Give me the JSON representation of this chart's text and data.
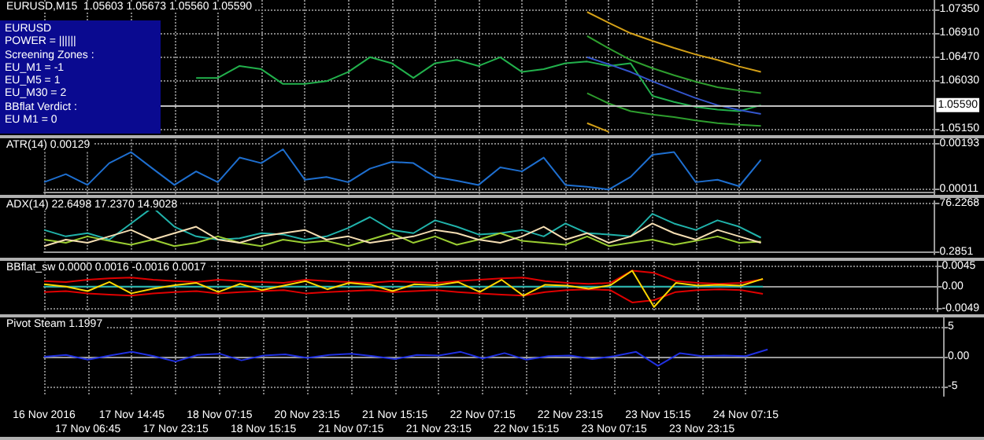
{
  "chart_data": [
    {
      "type": "line",
      "title": "EURUSD,M15  1.05603 1.05673 1.05560 1.05590",
      "annotations": [
        "EURUSD",
        "POWER = ||||||",
        "Screening Zones :",
        "EU_M1  = -1",
        "EU_M5  = 1",
        "EU_M30 = 2",
        "BBflat Verdict :",
        "EU M1  = 0"
      ],
      "categories": [
        null,
        null,
        null,
        null,
        null,
        null,
        null,
        null,
        null,
        null,
        null,
        null,
        null,
        null,
        null,
        null,
        null,
        null,
        null,
        null,
        null,
        null,
        null,
        null,
        null,
        null,
        null,
        null,
        null,
        null,
        null,
        null,
        null,
        null,
        null,
        null,
        null,
        null,
        null,
        null,
        null,
        null
      ],
      "series": [
        {
          "color": "#22b14c",
          "values": [
            null,
            null,
            null,
            null,
            null,
            null,
            null,
            1.0609,
            1.0609,
            1.0631,
            1.0625,
            1.0598,
            1.0598,
            1.0603,
            1.062,
            1.0647,
            1.0636,
            1.0609,
            1.0636,
            1.0642,
            1.0631,
            1.0647,
            1.062,
            1.0625,
            1.0636,
            1.0639,
            1.0631,
            1.0636,
            1.0576,
            1.0565,
            1.0556,
            1.0551,
            1.0548,
            1.0559,
            null,
            null,
            null,
            null,
            null,
            null,
            null,
            null
          ]
        },
        {
          "color": "#d4a017",
          "values": [
            null,
            null,
            null,
            null,
            null,
            null,
            null,
            null,
            null,
            null,
            null,
            null,
            null,
            null,
            null,
            null,
            null,
            null,
            null,
            null,
            null,
            null,
            null,
            null,
            null,
            1.073,
            1.071,
            1.0691,
            1.0677,
            1.0664,
            1.0652,
            1.0642,
            1.063,
            1.062,
            null,
            null,
            null,
            null,
            null,
            null,
            null,
            null
          ]
        },
        {
          "color": "#d4a017",
          "values": [
            null,
            null,
            null,
            null,
            null,
            null,
            null,
            null,
            null,
            null,
            null,
            null,
            null,
            null,
            null,
            null,
            null,
            null,
            null,
            null,
            null,
            null,
            null,
            null,
            null,
            1.0526,
            1.051,
            null,
            null,
            null,
            null,
            null,
            null,
            null,
            null,
            null,
            null,
            null,
            null,
            null,
            null,
            null
          ]
        },
        {
          "color": "#2e9e2e",
          "values": [
            null,
            null,
            null,
            null,
            null,
            null,
            null,
            null,
            null,
            null,
            null,
            null,
            null,
            null,
            null,
            null,
            null,
            null,
            null,
            null,
            null,
            null,
            null,
            null,
            null,
            1.0686,
            1.0663,
            1.0642,
            1.0627,
            1.0614,
            1.0602,
            1.0592,
            1.0586,
            1.0581,
            null,
            null,
            null,
            null,
            null,
            null,
            null,
            null
          ]
        },
        {
          "color": "#2e9e2e",
          "values": [
            null,
            null,
            null,
            null,
            null,
            null,
            null,
            null,
            null,
            null,
            null,
            null,
            null,
            null,
            null,
            null,
            null,
            null,
            null,
            null,
            null,
            null,
            null,
            null,
            null,
            1.0581,
            1.0562,
            1.0548,
            1.0542,
            1.0537,
            1.0531,
            1.0526,
            1.0523,
            1.0521,
            null,
            null,
            null,
            null,
            null,
            null,
            null,
            null
          ]
        },
        {
          "color": "#3355cc",
          "values": [
            null,
            null,
            null,
            null,
            null,
            null,
            null,
            null,
            null,
            null,
            null,
            null,
            null,
            null,
            null,
            null,
            null,
            null,
            null,
            null,
            null,
            null,
            null,
            null,
            null,
            1.0647,
            1.0634,
            1.062,
            1.0603,
            1.0587,
            1.0572,
            1.0559,
            1.055,
            1.0543,
            null,
            null,
            null,
            null,
            null,
            null,
            null,
            null
          ]
        }
      ],
      "ylim": [
        1.0504,
        1.0752
      ],
      "yticks": [
        {
          "value": 1.0735,
          "label": "1.07350"
        },
        {
          "value": 1.0691,
          "label": "1.06910"
        },
        {
          "value": 1.0647,
          "label": "1.06470"
        },
        {
          "value": 1.0603,
          "label": "1.06030"
        },
        {
          "value": 1.0515,
          "label": "1.05150"
        }
      ],
      "ref_lines": [
        {
          "axis": "y",
          "value": 1.0559,
          "label": "1.05590",
          "color": "#c0c0c0"
        }
      ],
      "grid": true,
      "tick_labels": "y"
    },
    {
      "type": "line",
      "title": "ATR(14) 0.00129",
      "categories": [
        null,
        null,
        null,
        null,
        null,
        null,
        null,
        null,
        null,
        null,
        null,
        null,
        null,
        null,
        null,
        null,
        null,
        null,
        null,
        null,
        null,
        null,
        null,
        null,
        null,
        null,
        null,
        null,
        null,
        null,
        null,
        null,
        null,
        null,
        null,
        null,
        null,
        null,
        null,
        null,
        null,
        null
      ],
      "series": [
        {
          "color": "#1e6fd0",
          "values": [
            0.0004,
            0.00072,
            0.00029,
            0.00116,
            0.0016,
            0.00094,
            0.00029,
            0.00083,
            0.0004,
            0.00138,
            0.00116,
            0.00171,
            0.0005,
            0.00061,
            0.0004,
            0.00094,
            0.00121,
            0.00116,
            0.00061,
            0.00046,
            0.00029,
            0.00099,
            0.00083,
            0.00138,
            0.00029,
            0.00022,
            0.00011,
            0.00061,
            0.00149,
            0.0016,
            0.0004,
            0.0005,
            0.00024,
            0.00129,
            null,
            null,
            null,
            null,
            null,
            null,
            null,
            null
          ]
        }
      ],
      "ylim": [
        -0.0001,
        0.0021
      ],
      "yticks": [
        0.00193,
        0.00011
      ],
      "grid": true,
      "tick_labels": "y"
    },
    {
      "type": "line",
      "title": "ADX(14) 22.6498 17.2370 14.9028",
      "categories": [
        null,
        null,
        null,
        null,
        null,
        null,
        null,
        null,
        null,
        null,
        null,
        null,
        null,
        null,
        null,
        null,
        null,
        null,
        null,
        null,
        null,
        null,
        null,
        null,
        null,
        null,
        null,
        null,
        null,
        null,
        null,
        null,
        null,
        null,
        null,
        null,
        null,
        null,
        null,
        null,
        null,
        null
      ],
      "series": [
        {
          "color": "#20b2aa",
          "values": [
            35,
            25,
            30,
            20,
            45,
            70,
            40,
            25,
            20,
            22,
            30,
            28,
            20,
            25,
            38,
            55,
            35,
            30,
            50,
            40,
            28,
            30,
            35,
            25,
            45,
            30,
            28,
            25,
            60,
            45,
            35,
            50,
            40,
            23,
            null,
            null,
            null,
            null,
            null,
            null,
            null,
            null
          ]
        },
        {
          "color": "#9acd32",
          "values": [
            20,
            15,
            25,
            18,
            12,
            20,
            10,
            15,
            25,
            15,
            10,
            20,
            15,
            18,
            10,
            20,
            30,
            15,
            25,
            12,
            20,
            30,
            18,
            15,
            12,
            25,
            10,
            15,
            20,
            12,
            18,
            25,
            15,
            17,
            null,
            null,
            null,
            null,
            null,
            null,
            null,
            null
          ]
        },
        {
          "color": "#f5deb3",
          "values": [
            10,
            20,
            15,
            25,
            35,
            20,
            30,
            40,
            20,
            15,
            25,
            30,
            35,
            20,
            25,
            15,
            20,
            25,
            35,
            30,
            20,
            15,
            25,
            40,
            20,
            30,
            15,
            25,
            45,
            30,
            20,
            35,
            25,
            15,
            null,
            null,
            null,
            null,
            null,
            null,
            null,
            null
          ]
        }
      ],
      "ylim": [
        -3,
        80
      ],
      "yticks": [
        76.2268,
        0.2851
      ],
      "grid": true,
      "tick_labels": "y"
    },
    {
      "type": "line",
      "title": "BBflat_sw 0.0000 0.0016 -0.0016 0.0017",
      "categories": [
        null,
        null,
        null,
        null,
        null,
        null,
        null,
        null,
        null,
        null,
        null,
        null,
        null,
        null,
        null,
        null,
        null,
        null,
        null,
        null,
        null,
        null,
        null,
        null,
        null,
        null,
        null,
        null,
        null,
        null,
        null,
        null,
        null,
        null,
        null,
        null,
        null,
        null,
        null,
        null,
        null,
        null
      ],
      "series": [
        {
          "color": "#20b2aa",
          "values": [
            0,
            0,
            0,
            0,
            0,
            0,
            0,
            0,
            0,
            0,
            0,
            0,
            0,
            0,
            0,
            0,
            0,
            0,
            0,
            0,
            0,
            0,
            0,
            0,
            0,
            0,
            0,
            0,
            0,
            0,
            0,
            0,
            0,
            0,
            null,
            null,
            null,
            null,
            null,
            null,
            null,
            null
          ]
        },
        {
          "color": "#e00000",
          "values": [
            0.0012,
            0.001,
            0.0015,
            0.0018,
            0.002,
            0.0015,
            0.0012,
            0.001,
            0.0015,
            0.0012,
            0.001,
            0.0008,
            0.0015,
            0.0012,
            0.001,
            0.0008,
            0.0012,
            0.001,
            0.0008,
            0.0012,
            0.0015,
            0.0018,
            0.002,
            0.0012,
            0.0008,
            0.0006,
            0.0008,
            0.0035,
            0.003,
            0.0012,
            0.0008,
            0.0006,
            0.0008,
            0.0016,
            null,
            null,
            null,
            null,
            null,
            null,
            null,
            null
          ]
        },
        {
          "color": "#e00000",
          "values": [
            -0.0012,
            -0.001,
            -0.0015,
            -0.0018,
            -0.002,
            -0.0015,
            -0.0012,
            -0.001,
            -0.0015,
            -0.0012,
            -0.001,
            -0.0008,
            -0.0015,
            -0.0012,
            -0.001,
            -0.0008,
            -0.0012,
            -0.001,
            -0.0008,
            -0.0012,
            -0.0015,
            -0.0018,
            -0.002,
            -0.0012,
            -0.0008,
            -0.0006,
            -0.0008,
            -0.0035,
            -0.003,
            -0.0012,
            -0.0008,
            -0.0006,
            -0.0008,
            -0.0016,
            null,
            null,
            null,
            null,
            null,
            null,
            null,
            null
          ]
        },
        {
          "color": "#ffd700",
          "values": [
            0.0005,
            0,
            -0.001,
            0.001,
            -0.0015,
            -0.0005,
            0.0003,
            0.0008,
            -0.0012,
            0.0006,
            -0.0008,
            0.0002,
            0.0012,
            -0.0006,
            0.0008,
            0.0004,
            -0.001,
            0.0005,
            0.0003,
            0.001,
            -0.0012,
            0.0015,
            -0.002,
            0.0004,
            0.0002,
            -0.0005,
            0.0003,
            0.0035,
            -0.0045,
            0.0008,
            0.0002,
            0.0004,
            0.0002,
            0.0017,
            null,
            null,
            null,
            null,
            null,
            null,
            null,
            null
          ]
        }
      ],
      "ylim": [
        -0.0055,
        0.0055
      ],
      "yticks": [
        0.0045,
        {
          "value": 0,
          "label": "0.00"
        },
        -0.0049
      ],
      "grid": true,
      "tick_labels": "y"
    },
    {
      "type": "line",
      "title": "Pivot Steam 1.1997",
      "categories": [
        "16 Nov 2016",
        null,
        "17 Nov 06:45",
        null,
        "17 Nov 14:45",
        null,
        "17 Nov 23:15",
        null,
        "18 Nov 07:15",
        null,
        "18 Nov 15:15",
        null,
        "20 Nov 23:15",
        null,
        "21 Nov 07:15",
        null,
        "21 Nov 15:15",
        null,
        "21 Nov 23:15",
        null,
        "22 Nov 07:15",
        null,
        "22 Nov 15:15",
        null,
        "22 Nov 23:15",
        null,
        "23 Nov 07:15",
        null,
        "23 Nov 15:15",
        null,
        "23 Nov 23:15",
        null,
        "24 Nov 07:15",
        null,
        null,
        null,
        null,
        null,
        null,
        null,
        null,
        null
      ],
      "series": [
        {
          "color": "#2030e0",
          "values": [
            0,
            0.3,
            -0.5,
            0.2,
            0.8,
            0.1,
            -0.8,
            0.3,
            0.5,
            -0.6,
            0.2,
            0.4,
            -0.2,
            0.3,
            0.5,
            0.1,
            -0.4,
            0.3,
            0.2,
            0.8,
            -0.3,
            0.6,
            -0.5,
            0.1,
            0.2,
            -0.4,
            0.1,
            0.8,
            -1.5,
            0.6,
            0.1,
            0.2,
            0.1,
            1.2,
            null,
            null,
            null,
            null,
            null,
            null,
            null,
            null
          ]
        }
      ],
      "ylim": [
        -6.5,
        6.5
      ],
      "yticks": [
        5,
        {
          "value": 0,
          "label": "0.00"
        },
        -5
      ],
      "grid": true
    }
  ]
}
